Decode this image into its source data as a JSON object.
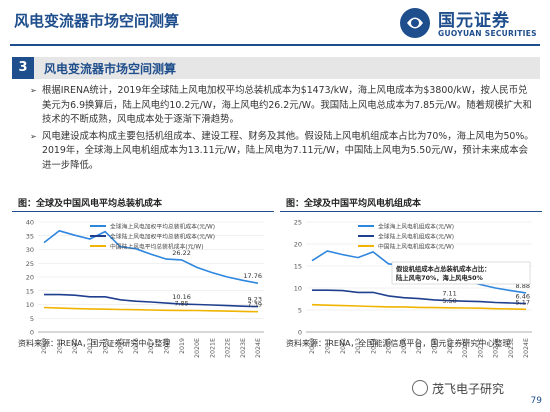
{
  "header": {
    "title": "风电变流器市场空间测算",
    "logo_cn": "国元证券",
    "logo_en": "GUOYUAN SECURITIES",
    "brand_color": "#1f4e8c"
  },
  "section": {
    "number": "3",
    "title": "风电变流器市场空间测算"
  },
  "bullets": [
    "根据IRENA统计，2019年全球陆上风电加权平均总装机成本为$1473/kW，海上风电成本为$3800/kW，按人民币兑美元为6.9换算后，陆上风电约10.2元/W，海上风电约26.2元/W。我国陆上风电总成本为7.85元/W。随着规模扩大和技术的不断成熟，风电成本处于逐渐下滑趋势。",
    "风电建设成本构成主要包括机组成本、建设工程、财务及其他。假设陆上风电机组成本占比为70%，海上风电为50%。2019年，全球海上风电机组成本为13.11元/W，陆上风电为7.11元/W，中国陆上风电为5.50元/W，预计未来成本会进一步降低。"
  ],
  "charts": {
    "left": {
      "fig_title": "图：全球及中国风电平均总装机成本",
      "source": "资料来源：IRENA，国元证券研究中心整理"
    },
    "right": {
      "fig_title": "图：全球及中国平均风电机组成本",
      "source": "资料来源：IRENA，全国能源信息平台，国元证券研究中心整理",
      "annotation": [
        "假设机组成本占总装机成本占比：",
        "陆上风电70%，海上风电50%"
      ]
    }
  },
  "chart_data": [
    {
      "type": "line",
      "title": "",
      "categories": [
        "2010",
        "2011",
        "2012",
        "2013",
        "2014",
        "2015",
        "2016",
        "2017",
        "2018",
        "2019",
        "2020E",
        "2021E",
        "2022E",
        "2023E",
        "2024E"
      ],
      "ylim": [
        0,
        40
      ],
      "yticks": [
        "0",
        "5",
        "10",
        "15",
        "20",
        "25",
        "30",
        "35",
        "40"
      ],
      "series": [
        {
          "name": "全球海上风电加权平均总装机成本(元/W)",
          "color": "#2e86de",
          "values": [
            32.5,
            36.8,
            35.2,
            33.8,
            36.5,
            31.0,
            30.3,
            28.3,
            26.5,
            26.22,
            23.5,
            21.6,
            20.0,
            18.8,
            17.76
          ]
        },
        {
          "name": "全球陆上风电加权平均总装机成本(元/W)",
          "color": "#1f3f8f",
          "values": [
            13.6,
            13.6,
            13.4,
            12.8,
            12.8,
            11.7,
            11.2,
            10.9,
            10.5,
            10.16,
            10.0,
            9.8,
            9.6,
            9.4,
            9.23
          ]
        },
        {
          "name": "中国陆上风电平均总装机成本(元/W)",
          "color": "#f0b400",
          "values": [
            8.9,
            8.7,
            8.5,
            8.4,
            8.3,
            8.2,
            8.1,
            8.0,
            7.9,
            7.85,
            7.8,
            7.7,
            7.6,
            7.5,
            7.39
          ]
        }
      ],
      "labels": [
        {
          "series": 0,
          "index": 9,
          "text": "26.22"
        },
        {
          "series": 0,
          "index": 14,
          "text": "17.76"
        },
        {
          "series": 1,
          "index": 9,
          "text": "10.16"
        },
        {
          "series": 1,
          "index": 14,
          "text": "9.23"
        },
        {
          "series": 2,
          "index": 9,
          "text": "7.85"
        },
        {
          "series": 2,
          "index": 14,
          "text": "7.39"
        }
      ]
    },
    {
      "type": "line",
      "title": "",
      "categories": [
        "2010",
        "2011",
        "2012",
        "2013",
        "2014",
        "2015",
        "2016",
        "2017",
        "2018",
        "2019",
        "2020E",
        "2021E",
        "2022E",
        "2023E",
        "2024E"
      ],
      "ylim": [
        0,
        25
      ],
      "yticks": [
        "0",
        "5",
        "10",
        "15",
        "20",
        "25"
      ],
      "series": [
        {
          "name": "全球海上风电机组成本(元/W)",
          "color": "#2e86de",
          "values": [
            16.2,
            18.4,
            17.6,
            16.9,
            18.2,
            15.5,
            15.1,
            14.1,
            13.3,
            13.11,
            11.8,
            10.8,
            10.0,
            9.4,
            8.88
          ]
        },
        {
          "name": "全球陆上风电机组成本(元/W)",
          "color": "#1f3f8f",
          "values": [
            9.5,
            9.5,
            9.4,
            9.0,
            9.0,
            8.2,
            7.8,
            7.6,
            7.3,
            7.11,
            7.0,
            6.9,
            6.7,
            6.6,
            6.46
          ]
        },
        {
          "name": "中国陆上风电机组成本(元/W)",
          "color": "#f0b400",
          "values": [
            6.2,
            6.1,
            6.0,
            5.9,
            5.8,
            5.7,
            5.7,
            5.6,
            5.55,
            5.5,
            5.45,
            5.4,
            5.3,
            5.25,
            5.17
          ]
        }
      ],
      "labels": [
        {
          "series": 0,
          "index": 9,
          "text": "13.11"
        },
        {
          "series": 0,
          "index": 14,
          "text": "8.88"
        },
        {
          "series": 1,
          "index": 9,
          "text": "7.11"
        },
        {
          "series": 1,
          "index": 14,
          "text": "6.46"
        },
        {
          "series": 2,
          "index": 9,
          "text": "5.50"
        },
        {
          "series": 2,
          "index": 14,
          "text": "5.17"
        }
      ]
    }
  ],
  "footer": {
    "page": "79",
    "watermark": "茂飞电子研究"
  }
}
